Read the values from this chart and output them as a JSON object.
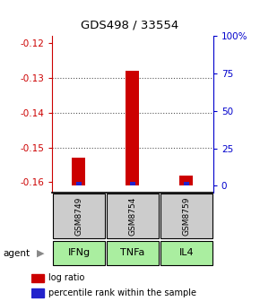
{
  "title": "GDS498 / 33554",
  "samples": [
    "GSM8749",
    "GSM8754",
    "GSM8759"
  ],
  "agents": [
    "IFNg",
    "TNFa",
    "IL4"
  ],
  "log_ratios": [
    -0.153,
    -0.128,
    -0.158
  ],
  "baseline": -0.161,
  "percentile_ranks": [
    7,
    8,
    6
  ],
  "left_ylim": [
    -0.163,
    -0.118
  ],
  "left_yticks": [
    -0.12,
    -0.13,
    -0.14,
    -0.15,
    -0.16
  ],
  "right_yticks_pct": [
    0,
    25,
    50,
    75,
    100
  ],
  "right_ytick_labels": [
    "0",
    "25",
    "50",
    "75",
    "100%"
  ],
  "bar_color_red": "#cc0000",
  "bar_color_blue": "#2222cc",
  "sample_box_color": "#cccccc",
  "agent_box_color": "#aaeea0",
  "grid_color": "#555555",
  "left_tick_color": "#cc0000",
  "right_tick_color": "#0000cc",
  "legend_red_label": "log ratio",
  "legend_blue_label": "percentile rank within the sample",
  "bar_width": 0.25,
  "blue_bar_width": 0.1
}
